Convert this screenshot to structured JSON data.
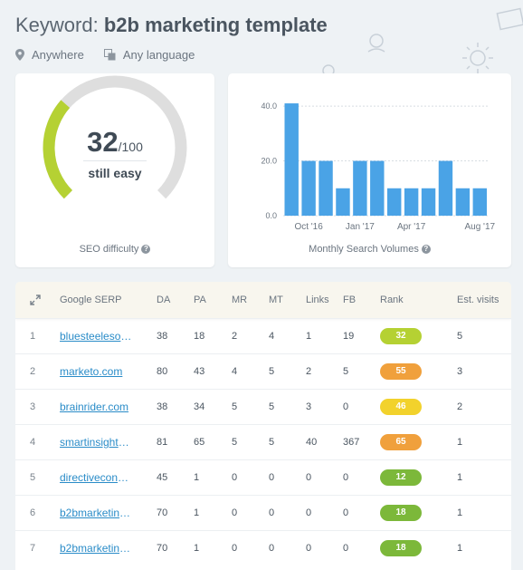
{
  "title": {
    "prefix": "Keyword:",
    "keyword": "b2b marketing template"
  },
  "meta": {
    "location": "Anywhere",
    "language": "Any language"
  },
  "seo": {
    "score": "32",
    "max": "/100",
    "rating": "still easy",
    "caption": "SEO difficulty",
    "fraction": 0.32,
    "color_fill": "#b5d133",
    "color_track": "#dedede"
  },
  "volume": {
    "caption": "Monthly Search Volumes",
    "chart_data": {
      "type": "bar",
      "categories": [
        "Sep '16",
        "Oct '16",
        "Nov '16",
        "Dec '16",
        "Jan '17",
        "Feb '17",
        "Mar '17",
        "Apr '17",
        "May '17",
        "Jun '17",
        "Jul '17",
        "Aug '17"
      ],
      "x_tick_labels": [
        "Oct '16",
        "Jan '17",
        "Apr '17",
        "Aug '17"
      ],
      "x_tick_categories": [
        "Oct '16",
        "Jan '17",
        "Apr '17",
        "Aug '17"
      ],
      "values": [
        41,
        20,
        20,
        10,
        20,
        20,
        10,
        10,
        10,
        20,
        10,
        10
      ],
      "y_ticks": [
        "40.0",
        "20.0",
        "0.0"
      ],
      "ylim": [
        0,
        44
      ],
      "bar_color": "#4aa3e6",
      "grid": true
    }
  },
  "table": {
    "headers": {
      "serp": "Google SERP",
      "da": "DA",
      "pa": "PA",
      "mr": "MR",
      "mt": "MT",
      "links": "Links",
      "fb": "FB",
      "rank": "Rank",
      "est": "Est. visits"
    },
    "rows": [
      {
        "n": "1",
        "url": "bluesteelesolutions.com",
        "da": "38",
        "pa": "18",
        "mr": "2",
        "mt": "4",
        "links": "1",
        "fb": "19",
        "rank": "32",
        "rank_color": "#b5d133",
        "est": "5"
      },
      {
        "n": "2",
        "url": "marketo.com",
        "da": "80",
        "pa": "43",
        "mr": "4",
        "mt": "5",
        "links": "2",
        "fb": "5",
        "rank": "55",
        "rank_color": "#f0a03c",
        "est": "3"
      },
      {
        "n": "3",
        "url": "brainrider.com",
        "da": "38",
        "pa": "34",
        "mr": "5",
        "mt": "5",
        "links": "3",
        "fb": "0",
        "rank": "46",
        "rank_color": "#f2d22c",
        "est": "2"
      },
      {
        "n": "4",
        "url": "smartinsights.com",
        "da": "81",
        "pa": "65",
        "mr": "5",
        "mt": "5",
        "links": "40",
        "fb": "367",
        "rank": "65",
        "rank_color": "#f0a03c",
        "est": "1"
      },
      {
        "n": "5",
        "url": "directiveconsulting.com",
        "da": "45",
        "pa": "1",
        "mr": "0",
        "mt": "0",
        "links": "0",
        "fb": "0",
        "rank": "12",
        "rank_color": "#7cb83a",
        "est": "1"
      },
      {
        "n": "6",
        "url": "b2bmarketing.net",
        "da": "70",
        "pa": "1",
        "mr": "0",
        "mt": "0",
        "links": "0",
        "fb": "0",
        "rank": "18",
        "rank_color": "#7cb83a",
        "est": "1"
      },
      {
        "n": "7",
        "url": "b2bmarketing.net",
        "da": "70",
        "pa": "1",
        "mr": "0",
        "mt": "0",
        "links": "0",
        "fb": "0",
        "rank": "18",
        "rank_color": "#7cb83a",
        "est": "1"
      }
    ]
  }
}
